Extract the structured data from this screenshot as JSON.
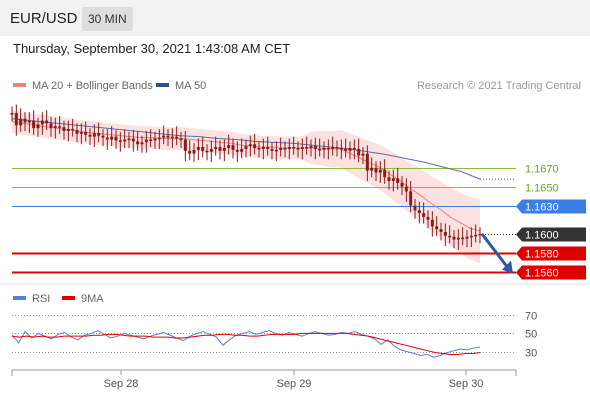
{
  "header": {
    "pair": "EUR/USD",
    "timeframe": "30 MIN"
  },
  "datetime": "Thursday, September 30, 2021 1:43:08 AM CET",
  "credit": "Research © 2021 Trading Central",
  "legend_main": [
    {
      "label": "MA 20 + Bollinger Bands",
      "color": "#f08080"
    },
    {
      "label": "MA 50",
      "color": "#2f4f8f"
    }
  ],
  "legend_rsi": [
    {
      "label": "RSI",
      "color": "#5b7fd6"
    },
    {
      "label": "9MA",
      "color": "#e00000"
    }
  ],
  "colors": {
    "resistance": "#8bbf3a",
    "pivot": "#3a7ee6",
    "support": "#e00000",
    "current": "#333333",
    "arrow": "#2c5aa0",
    "candle": "#8b1a1a",
    "band": "#fbdcdc",
    "ma20": "#f08080",
    "ma50": "#5a6fa8"
  },
  "chart_data": [
    {
      "type": "line",
      "title": "EUR/USD 30 MIN",
      "ylim": [
        1.1548,
        1.1745
      ],
      "x_ticks": [
        "Sep 28",
        "Sep 29",
        "Sep 30"
      ],
      "price": [
        1.1728,
        1.1715,
        1.1722,
        1.1718,
        1.172,
        1.1712,
        1.1716,
        1.172,
        1.1717,
        1.1712,
        1.1714,
        1.1713,
        1.1709,
        1.1711,
        1.171,
        1.1706,
        1.1708,
        1.1705,
        1.1703,
        1.1707,
        1.1704,
        1.1702,
        1.17,
        1.1703,
        1.1699,
        1.1698,
        1.17,
        1.1701,
        1.1698,
        1.1695,
        1.1697,
        1.17,
        1.1699,
        1.1701,
        1.1702,
        1.1704,
        1.1702,
        1.1703,
        1.1701,
        1.17,
        1.1688,
        1.1685,
        1.1689,
        1.1692,
        1.1688,
        1.1687,
        1.169,
        1.1692,
        1.1688,
        1.1691,
        1.1694,
        1.1689,
        1.1687,
        1.169,
        1.1693,
        1.1695,
        1.1691,
        1.169,
        1.1692,
        1.169,
        1.1688,
        1.1689,
        1.1691,
        1.169,
        1.1692,
        1.1691,
        1.169,
        1.1692,
        1.1691,
        1.1693,
        1.169,
        1.1689,
        1.1691,
        1.169,
        1.1692,
        1.1691,
        1.169,
        1.1688,
        1.1691,
        1.169,
        1.1683,
        1.1685,
        1.1667,
        1.167,
        1.1665,
        1.1668,
        1.166,
        1.1656,
        1.1659,
        1.1654,
        1.165,
        1.1645,
        1.163,
        1.1625,
        1.1622,
        1.1618,
        1.1615,
        1.1608,
        1.1605,
        1.1602,
        1.1598,
        1.1597,
        1.1594,
        1.1596,
        1.1595,
        1.1597,
        1.1598,
        1.1599,
        1.16
      ],
      "series": [
        {
          "name": "MA 20 + Bollinger Bands",
          "values": [
            1.1719,
            1.1717,
            1.1716,
            1.1714,
            1.1713,
            1.1711,
            1.171,
            1.1708,
            1.1707,
            1.1706,
            1.1705,
            1.1704,
            1.1703,
            1.1702,
            1.1702,
            1.1701,
            1.1701,
            1.1701,
            1.17,
            1.1699,
            1.1698,
            1.1697,
            1.1696,
            1.1694,
            1.1693,
            1.1692,
            1.1692,
            1.1691,
            1.1691,
            1.1691,
            1.1691,
            1.1691,
            1.169,
            1.169,
            1.1685,
            1.168,
            1.1675,
            1.167,
            1.1663,
            1.1656,
            1.1648,
            1.1641,
            1.1633,
            1.1626,
            1.1618,
            1.1612,
            1.1606,
            1.1603
          ]
        },
        {
          "name": "MA 50",
          "values": [
            1.1722,
            1.172,
            1.1718,
            1.1716,
            1.1714,
            1.1712,
            1.171,
            1.1708,
            1.1706,
            1.1704,
            1.1703,
            1.1701,
            1.17,
            1.1698,
            1.1697,
            1.1696,
            1.1694,
            1.1692,
            1.169,
            1.1687,
            1.1684,
            1.168,
            1.1676,
            1.1671,
            1.1666,
            1.1658
          ]
        }
      ],
      "levels": [
        {
          "label": "1.1670",
          "value": 1.167,
          "kind": "resistance"
        },
        {
          "label": "1.1650",
          "value": 1.165,
          "kind": "resistance"
        },
        {
          "label": "1.1630",
          "value": 1.163,
          "kind": "pivot"
        },
        {
          "label": "1.1600",
          "value": 1.16,
          "kind": "current"
        },
        {
          "label": "1.1580",
          "value": 1.158,
          "kind": "support"
        },
        {
          "label": "1.1560",
          "value": 1.156,
          "kind": "support"
        }
      ],
      "forecast_arrow": {
        "from": 1.16,
        "to": 1.156
      }
    },
    {
      "type": "line",
      "title": "RSI",
      "ylim": [
        10,
        80
      ],
      "y_ticks": [
        70,
        50,
        30
      ],
      "series": [
        {
          "name": "RSI",
          "values": [
            48,
            40,
            52,
            45,
            50,
            47,
            44,
            49,
            51,
            46,
            43,
            48,
            50,
            53,
            49,
            45,
            47,
            50,
            48,
            46,
            44,
            47,
            49,
            51,
            48,
            45,
            42,
            47,
            50,
            52,
            49,
            46,
            37,
            43,
            48,
            50,
            52,
            49,
            51,
            53,
            50,
            48,
            51,
            49,
            47,
            50,
            52,
            50,
            48,
            49,
            51,
            50,
            52,
            49,
            47,
            44,
            38,
            43,
            36,
            32,
            30,
            28,
            26,
            27,
            24,
            26,
            29,
            31,
            33,
            32,
            34,
            35
          ]
        },
        {
          "name": "9MA",
          "values": [
            47,
            46,
            47,
            46,
            47,
            46,
            46,
            47,
            47,
            47,
            47,
            48,
            48,
            49,
            49,
            48,
            47,
            47,
            47,
            46,
            46,
            46,
            45,
            45,
            46,
            47,
            48,
            48,
            49,
            49,
            48,
            48,
            47,
            47,
            48,
            49,
            49,
            49,
            49,
            50,
            50,
            50,
            50,
            50,
            50,
            50,
            49,
            48,
            47,
            45,
            43,
            41,
            39,
            37,
            35,
            33,
            31,
            29,
            28,
            27,
            27,
            28,
            28,
            29
          ]
        }
      ]
    }
  ]
}
